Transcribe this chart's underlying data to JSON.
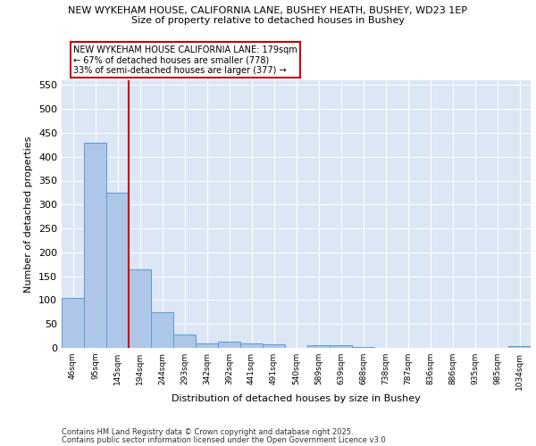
{
  "title_line1": "NEW WYKEHAM HOUSE, CALIFORNIA LANE, BUSHEY HEATH, BUSHEY, WD23 1EP",
  "title_line2": "Size of property relative to detached houses in Bushey",
  "xlabel": "Distribution of detached houses by size in Bushey",
  "ylabel": "Number of detached properties",
  "bar_labels": [
    "46sqm",
    "95sqm",
    "145sqm",
    "194sqm",
    "244sqm",
    "293sqm",
    "342sqm",
    "392sqm",
    "441sqm",
    "491sqm",
    "540sqm",
    "589sqm",
    "639sqm",
    "688sqm",
    "738sqm",
    "787sqm",
    "836sqm",
    "886sqm",
    "935sqm",
    "985sqm",
    "1034sqm"
  ],
  "bar_values": [
    105,
    430,
    325,
    165,
    75,
    28,
    10,
    13,
    10,
    8,
    0,
    5,
    5,
    2,
    0,
    0,
    0,
    0,
    0,
    0,
    4
  ],
  "bar_color": "#aec6e8",
  "bar_edge_color": "#5b9bd5",
  "bg_color": "#dce6f5",
  "grid_color": "#ffffff",
  "vline_color": "#cc0000",
  "annotation_text": "NEW WYKEHAM HOUSE CALIFORNIA LANE: 179sqm\n← 67% of detached houses are smaller (778)\n33% of semi-detached houses are larger (377) →",
  "annotation_box_color": "#ffffff",
  "annotation_box_edge": "#cc0000",
  "ylim": [
    0,
    560
  ],
  "yticks": [
    0,
    50,
    100,
    150,
    200,
    250,
    300,
    350,
    400,
    450,
    500,
    550
  ],
  "footer_line1": "Contains HM Land Registry data © Crown copyright and database right 2025.",
  "footer_line2": "Contains public sector information licensed under the Open Government Licence v3.0"
}
